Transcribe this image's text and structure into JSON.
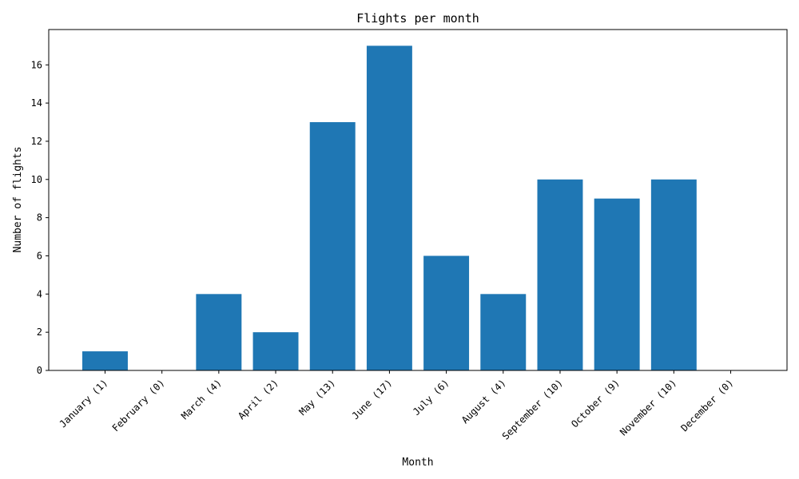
{
  "chart_data": {
    "type": "bar",
    "title": "Flights per month",
    "xlabel": "Month",
    "ylabel": "Number of flights",
    "categories": [
      "January (1)",
      "February (0)",
      "March (4)",
      "April (2)",
      "May (13)",
      "June (17)",
      "July (6)",
      "August (4)",
      "September (10)",
      "October (9)",
      "November (10)",
      "December (0)"
    ],
    "values": [
      1,
      0,
      4,
      2,
      13,
      17,
      6,
      4,
      10,
      9,
      10,
      0
    ],
    "ylim": [
      0,
      17.85
    ],
    "yticks": [
      0,
      2,
      4,
      6,
      8,
      10,
      12,
      14,
      16
    ],
    "grid": false,
    "bar_color": "#1f77b4"
  }
}
